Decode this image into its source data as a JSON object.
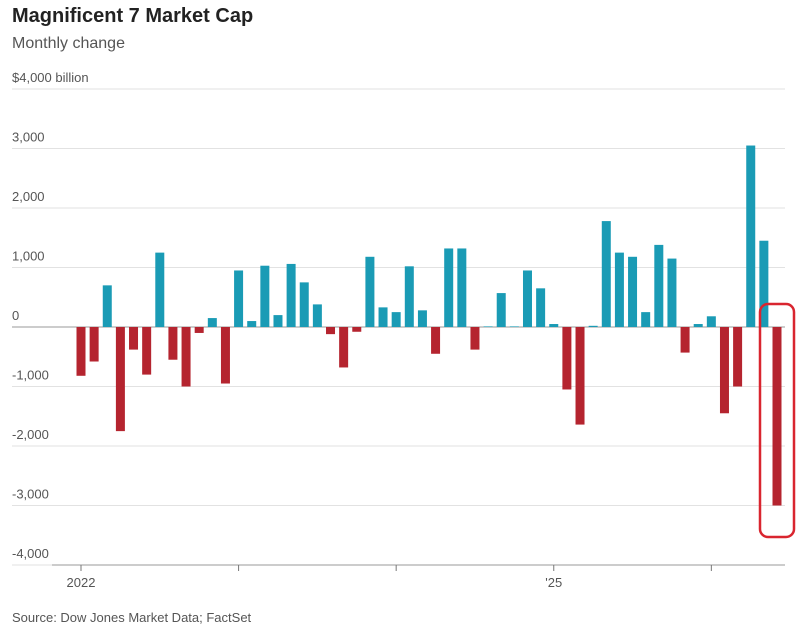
{
  "chart_data": {
    "type": "bar",
    "title": "Magnificent 7 Market Cap",
    "subtitle": "Monthly change",
    "source": "Source: Dow Jones Market Data; FactSet",
    "categories": [
      "2022",
      null,
      null,
      null,
      null,
      null,
      null,
      null,
      null,
      null,
      null,
      null,
      null,
      null,
      null,
      null,
      null,
      null,
      null,
      null,
      null,
      null,
      null,
      null,
      null,
      null,
      null,
      null,
      null,
      null,
      null,
      null,
      null,
      null,
      null,
      null,
      "'25",
      null,
      null,
      null,
      null,
      null,
      null,
      null,
      null,
      null,
      null,
      null,
      null,
      null,
      null,
      null,
      null,
      null
    ],
    "values": [
      -820,
      -580,
      700,
      -1750,
      -380,
      -800,
      1250,
      -550,
      -1000,
      -100,
      150,
      -950,
      950,
      100,
      1030,
      200,
      1060,
      750,
      380,
      -120,
      -680,
      -80,
      1180,
      330,
      250,
      1020,
      280,
      -450,
      1320,
      1320,
      -380,
      10,
      570,
      10,
      950,
      650,
      50,
      -1050,
      -1640,
      20,
      1780,
      1250,
      1180,
      250,
      1380,
      1150,
      -430,
      50,
      180,
      -1450,
      -1000,
      3050,
      1450,
      -3000
    ],
    "positive_color": "#1a9bb5",
    "negative_color": "#b5242f",
    "ylim": [
      -4000,
      4000
    ],
    "yticks": [
      {
        "value": -4000,
        "label": "-4,000"
      },
      {
        "value": -3000,
        "label": "-3,000"
      },
      {
        "value": -2000,
        "label": "-2,000"
      },
      {
        "value": -1000,
        "label": "-1,000"
      },
      0,
      {
        "value": 1000,
        "label": "1,000"
      },
      {
        "value": 2000,
        "label": "2,000"
      },
      {
        "value": 3000,
        "label": "3,000"
      },
      {
        "value": 4000,
        "label": "$4,000 billion"
      }
    ],
    "grid": true
  }
}
